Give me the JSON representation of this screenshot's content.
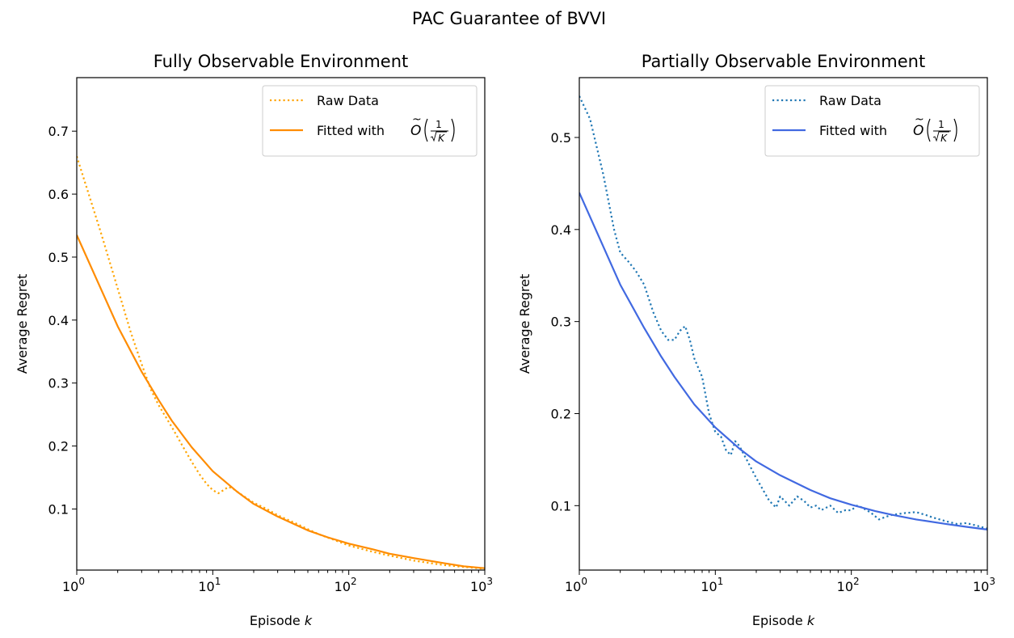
{
  "figure": {
    "title": "PAC Guarantee of BVVI"
  },
  "chart_data": [
    {
      "type": "line",
      "title": "Fully Observable Environment",
      "xlabel": "Episode",
      "xlabel_var": "k",
      "ylabel": "Average Regret",
      "xscale": "log",
      "xlim": [
        1,
        1000
      ],
      "ylim": [
        0.003,
        0.785
      ],
      "xticks": [
        {
          "value": 1,
          "base": "10",
          "exp": "0"
        },
        {
          "value": 10,
          "base": "10",
          "exp": "1"
        },
        {
          "value": 100,
          "base": "10",
          "exp": "2"
        },
        {
          "value": 1000,
          "base": "10",
          "exp": "3"
        }
      ],
      "yticks": [
        {
          "value": 0.1,
          "label": "0.1"
        },
        {
          "value": 0.2,
          "label": "0.2"
        },
        {
          "value": 0.3,
          "label": "0.3"
        },
        {
          "value": 0.4,
          "label": "0.4"
        },
        {
          "value": 0.5,
          "label": "0.5"
        },
        {
          "value": 0.6,
          "label": "0.6"
        },
        {
          "value": 0.7,
          "label": "0.7"
        }
      ],
      "legend_position": "top-right",
      "grid": false,
      "series": [
        {
          "name": "Raw Data",
          "style": "dotted",
          "color": "#FFA500",
          "x": [
            1,
            1.5,
            2,
            2.5,
            3,
            3.5,
            4,
            5,
            6,
            7,
            8,
            9,
            10,
            11,
            12,
            13,
            14,
            15,
            17,
            20,
            25,
            30,
            40,
            50,
            60,
            80,
            100,
            150,
            200,
            300,
            500,
            700,
            1000
          ],
          "y": [
            0.66,
            0.54,
            0.45,
            0.38,
            0.33,
            0.29,
            0.265,
            0.23,
            0.2,
            0.175,
            0.155,
            0.14,
            0.13,
            0.125,
            0.13,
            0.135,
            0.133,
            0.128,
            0.12,
            0.11,
            0.1,
            0.09,
            0.078,
            0.068,
            0.06,
            0.05,
            0.042,
            0.032,
            0.026,
            0.018,
            0.011,
            0.008,
            0.005
          ]
        },
        {
          "name": "Fitted with",
          "name_math": {
            "O": "O",
            "num": "1",
            "den": "K"
          },
          "style": "solid",
          "color": "#FF8C00",
          "x": [
            1,
            2,
            3,
            4,
            5,
            7,
            10,
            15,
            20,
            30,
            50,
            70,
            100,
            150,
            200,
            300,
            500,
            700,
            1000
          ],
          "y": [
            0.535,
            0.39,
            0.318,
            0.273,
            0.24,
            0.198,
            0.16,
            0.128,
            0.108,
            0.088,
            0.066,
            0.055,
            0.045,
            0.036,
            0.029,
            0.022,
            0.014,
            0.009,
            0.006
          ]
        }
      ]
    },
    {
      "type": "line",
      "title": "Partially Observable Environment",
      "xlabel": "Episode",
      "xlabel_var": "k",
      "ylabel": "Average Regret",
      "xscale": "log",
      "xlim": [
        1,
        1000
      ],
      "ylim": [
        0.03,
        0.565
      ],
      "xticks": [
        {
          "value": 1,
          "base": "10",
          "exp": "0"
        },
        {
          "value": 10,
          "base": "10",
          "exp": "1"
        },
        {
          "value": 100,
          "base": "10",
          "exp": "2"
        },
        {
          "value": 1000,
          "base": "10",
          "exp": "3"
        }
      ],
      "yticks": [
        {
          "value": 0.1,
          "label": "0.1"
        },
        {
          "value": 0.2,
          "label": "0.2"
        },
        {
          "value": 0.3,
          "label": "0.3"
        },
        {
          "value": 0.4,
          "label": "0.4"
        },
        {
          "value": 0.5,
          "label": "0.5"
        }
      ],
      "legend_position": "top-right",
      "grid": false,
      "series": [
        {
          "name": "Raw Data",
          "style": "dotted",
          "color": "#1F77B4",
          "x": [
            1,
            1.2,
            1.5,
            1.8,
            2,
            2.3,
            2.6,
            3,
            3.5,
            4,
            4.5,
            5,
            5.5,
            6,
            6.5,
            7,
            8,
            9,
            10,
            11,
            12,
            13,
            14,
            15,
            17,
            20,
            25,
            28,
            30,
            35,
            40,
            45,
            50,
            55,
            60,
            70,
            80,
            90,
            100,
            110,
            120,
            140,
            160,
            180,
            200,
            250,
            300,
            350,
            400,
            500,
            600,
            700,
            800,
            1000
          ],
          "y": [
            0.545,
            0.52,
            0.46,
            0.4,
            0.375,
            0.365,
            0.355,
            0.34,
            0.31,
            0.29,
            0.28,
            0.28,
            0.29,
            0.295,
            0.28,
            0.26,
            0.24,
            0.2,
            0.18,
            0.175,
            0.16,
            0.155,
            0.17,
            0.165,
            0.15,
            0.13,
            0.105,
            0.098,
            0.11,
            0.1,
            0.11,
            0.105,
            0.098,
            0.1,
            0.095,
            0.1,
            0.092,
            0.095,
            0.095,
            0.1,
            0.098,
            0.092,
            0.085,
            0.088,
            0.09,
            0.092,
            0.093,
            0.09,
            0.087,
            0.083,
            0.08,
            0.081,
            0.079,
            0.075
          ]
        },
        {
          "name": "Fitted with",
          "name_math": {
            "O": "O",
            "num": "1",
            "den": "K"
          },
          "style": "solid",
          "color": "#4169E1",
          "x": [
            1,
            2,
            3,
            4,
            5,
            7,
            10,
            15,
            20,
            30,
            50,
            70,
            100,
            150,
            200,
            300,
            500,
            700,
            1000
          ],
          "y": [
            0.44,
            0.34,
            0.293,
            0.262,
            0.24,
            0.21,
            0.185,
            0.162,
            0.148,
            0.133,
            0.117,
            0.108,
            0.101,
            0.094,
            0.09,
            0.085,
            0.08,
            0.077,
            0.074
          ]
        }
      ]
    }
  ]
}
